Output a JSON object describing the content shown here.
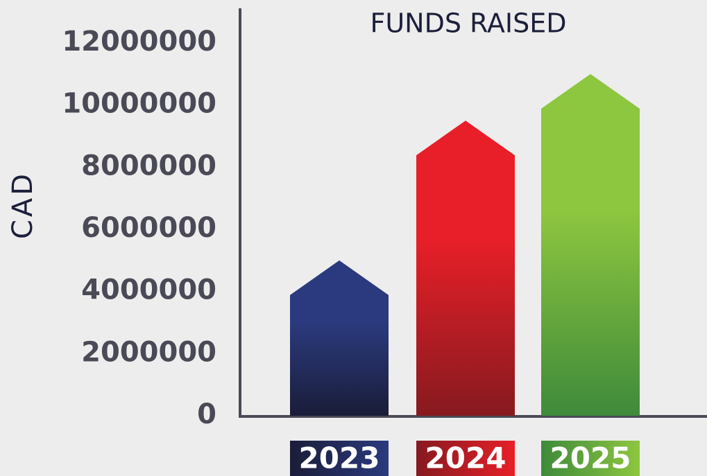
{
  "chart_data": {
    "type": "bar",
    "title": "FUNDS RAISED",
    "y_label": "CAD",
    "categories": [
      "2023",
      "2024",
      "2025"
    ],
    "values": [
      5000000,
      9500000,
      11000000
    ],
    "colors": [
      [
        "#2b3a7e",
        "#1a1d38"
      ],
      [
        "#e81f28",
        "#861a1f"
      ],
      [
        "#8dc63f",
        "#3f8a3b"
      ]
    ],
    "ylim": [
      0,
      12000000
    ],
    "yticks": [
      0,
      2000000,
      4000000,
      6000000,
      8000000,
      10000000,
      12000000
    ],
    "grid": false
  }
}
